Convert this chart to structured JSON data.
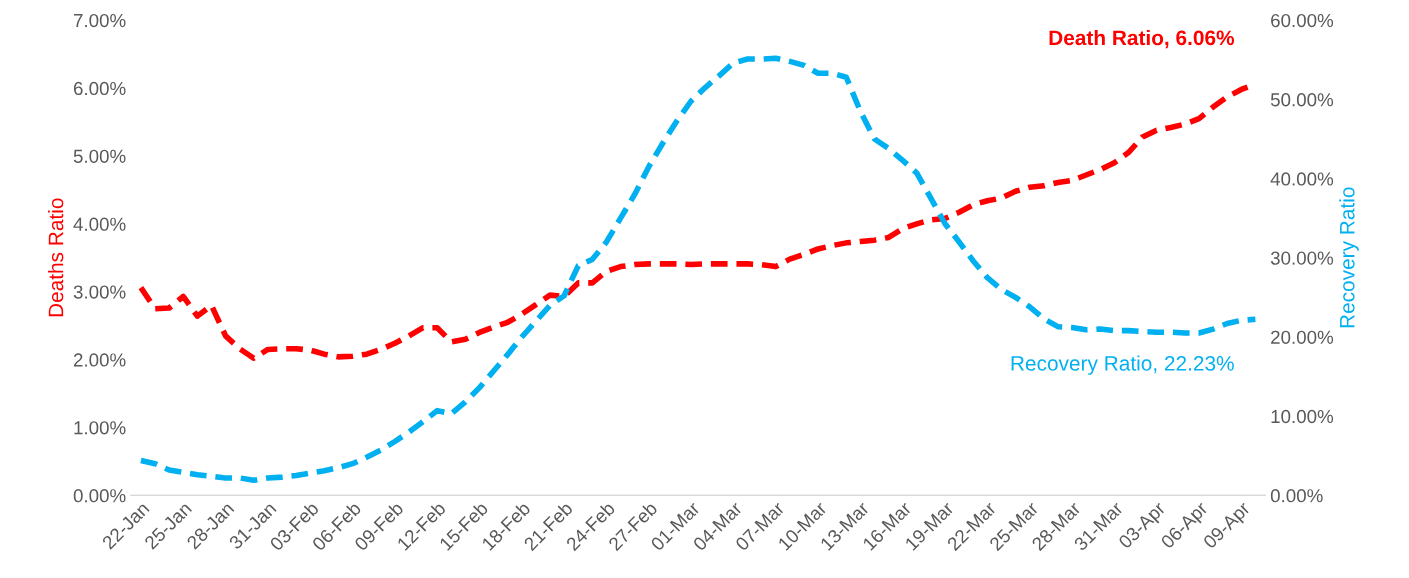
{
  "chart_data": {
    "type": "line",
    "ylabel": "Deaths Ratio",
    "y2label": "Recovery Ratio",
    "categories": [
      "22-Jan",
      null,
      null,
      "25-Jan",
      null,
      null,
      "28-Jan",
      null,
      null,
      "31-Jan",
      null,
      null,
      "03-Feb",
      null,
      null,
      "06-Feb",
      null,
      null,
      "09-Feb",
      null,
      null,
      "12-Feb",
      null,
      null,
      "15-Feb",
      null,
      null,
      "18-Feb",
      null,
      null,
      "21-Feb",
      null,
      null,
      "24-Feb",
      null,
      null,
      "27-Feb",
      null,
      null,
      "01-Mar",
      null,
      null,
      "04-Mar",
      null,
      null,
      "07-Mar",
      null,
      null,
      "10-Mar",
      null,
      null,
      "13-Mar",
      null,
      null,
      "16-Mar",
      null,
      null,
      "19-Mar",
      null,
      null,
      "22-Mar",
      null,
      null,
      "25-Mar",
      null,
      null,
      "28-Mar",
      null,
      null,
      "31-Mar",
      null,
      null,
      "03-Apr",
      null,
      null,
      "06-Apr",
      null,
      null,
      "09-Apr",
      null
    ],
    "series": [
      {
        "name": "Death Ratio, 6.06%",
        "color": "#ff0000",
        "values": [
          3.06,
          2.75,
          2.76,
          2.93,
          2.64,
          2.8,
          2.35,
          2.16,
          2.02,
          2.15,
          2.16,
          2.16,
          2.14,
          2.08,
          2.04,
          2.05,
          2.08,
          2.15,
          2.24,
          2.35,
          2.47,
          2.47,
          2.26,
          2.3,
          2.4,
          2.48,
          2.55,
          2.67,
          2.81,
          2.95,
          2.93,
          3.13,
          3.13,
          3.3,
          3.37,
          3.4,
          3.41,
          3.41,
          3.41,
          3.4,
          3.41,
          3.41,
          3.41,
          3.41,
          3.4,
          3.37,
          3.48,
          3.55,
          3.63,
          3.68,
          3.72,
          3.74,
          3.76,
          3.8,
          3.93,
          4.0,
          4.06,
          4.08,
          4.17,
          4.28,
          4.34,
          4.38,
          4.48,
          4.54,
          4.56,
          4.61,
          4.64,
          4.72,
          4.8,
          4.9,
          5.05,
          5.28,
          5.38,
          5.42,
          5.47,
          5.55,
          5.72,
          5.87,
          5.98,
          6.06
        ]
      },
      {
        "name": "Recovery Ratio, 22.23%",
        "color": "#00b0f0",
        "axis": "y2",
        "values": [
          4.4,
          4.0,
          3.2,
          2.9,
          2.6,
          2.4,
          2.2,
          2.2,
          1.9,
          2.2,
          2.3,
          2.5,
          2.8,
          3.1,
          3.5,
          4.0,
          4.8,
          5.7,
          6.8,
          8.0,
          9.3,
          10.7,
          10.3,
          11.8,
          13.6,
          15.7,
          17.8,
          20.0,
          22.0,
          24.0,
          25.2,
          29.0,
          29.8,
          32.0,
          35.0,
          38.0,
          41.5,
          44.5,
          47.3,
          49.8,
          51.5,
          53.0,
          54.6,
          55.1,
          55.1,
          55.2,
          54.8,
          54.3,
          53.3,
          53.3,
          52.8,
          48.5,
          45.0,
          43.8,
          42.3,
          40.7,
          37.5,
          34.3,
          32.0,
          29.6,
          27.5,
          26.0,
          25.0,
          23.8,
          22.3,
          21.3,
          21.2,
          20.9,
          21.0,
          20.8,
          20.8,
          20.7,
          20.6,
          20.6,
          20.5,
          20.5,
          21.0,
          21.7,
          22.1,
          22.23
        ]
      }
    ],
    "ylim": [
      0,
      7
    ],
    "yticks": [
      {
        "value": 0,
        "label": "0.00%"
      },
      {
        "value": 1,
        "label": "1.00%"
      },
      {
        "value": 2,
        "label": "2.00%"
      },
      {
        "value": 3,
        "label": "3.00%"
      },
      {
        "value": 4,
        "label": "4.00%"
      },
      {
        "value": 5,
        "label": "5.00%"
      },
      {
        "value": 6,
        "label": "6.00%"
      },
      {
        "value": 7,
        "label": "7.00%"
      }
    ],
    "y2lim": [
      0,
      60
    ],
    "y2ticks": [
      {
        "value": 0,
        "label": "0.00%"
      },
      {
        "value": 10,
        "label": "10.00%"
      },
      {
        "value": 20,
        "label": "20.00%"
      },
      {
        "value": 30,
        "label": "30.00%"
      },
      {
        "value": 40,
        "label": "40.00%"
      },
      {
        "value": 50,
        "label": "50.00%"
      },
      {
        "value": 60,
        "label": "60.00%"
      }
    ],
    "line_style": "dashed",
    "marker": "none",
    "grid": false,
    "legend": false
  }
}
